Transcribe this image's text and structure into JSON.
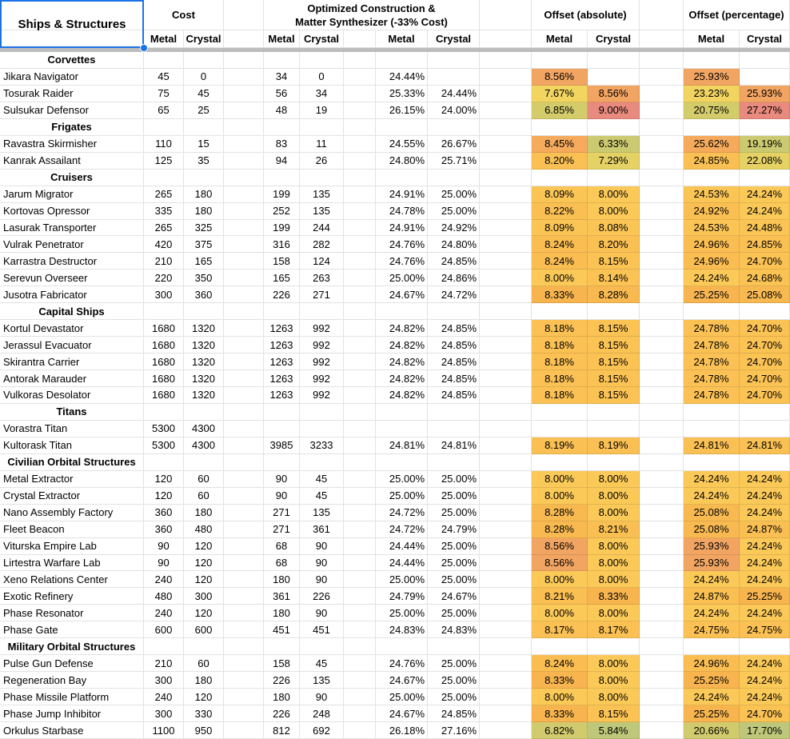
{
  "header": {
    "corner": "Ships & Structures",
    "groups": {
      "cost": "Cost",
      "optimized_line1": "Optimized Construction &",
      "optimized_line2": "Matter Synthesizer (-33% Cost)",
      "offset_absolute": "Offset (absolute)",
      "offset_percentage": "Offset (percentage)"
    },
    "sub": {
      "metal": "Metal",
      "crystal": "Crystal"
    }
  },
  "colors": {
    "selection_blue": "#1a73e8",
    "gridline": "#e2e2e2",
    "freeze_bar": "#bdbdbd",
    "palette": {
      "g": "#bec77a",
      "yg1": "#ccca70",
      "yg2": "#d1cb6e",
      "yg3": "#d4cc6b",
      "y1": "#e5d164",
      "y2": "#f2d561",
      "a0": "#fbc958",
      "a1": "#fbc556",
      "a2": "#fbc254",
      "a3": "#fbc154",
      "a4": "#fac053",
      "a5": "#fabf53",
      "a6": "#fabd52",
      "a7": "#f8b951",
      "a8": "#f7b44f",
      "o1": "#f5aa5c",
      "o2": "#f2a562",
      "r": "#e88a7d"
    }
  },
  "rows": [
    {
      "cat": "Corvettes"
    },
    {
      "n": "Jikara Navigator",
      "c": [
        "45",
        "0",
        "34",
        "0",
        "24.44%",
        ""
      ],
      "o": [
        [
          "8.56%",
          "o2"
        ],
        null,
        [
          "25.93%",
          "o2"
        ],
        null
      ]
    },
    {
      "n": "Tosurak Raider",
      "c": [
        "75",
        "45",
        "56",
        "34",
        "25.33%",
        "24.44%"
      ],
      "o": [
        [
          "7.67%",
          "y2"
        ],
        [
          "8.56%",
          "o2"
        ],
        [
          "23.23%",
          "y2"
        ],
        [
          "25.93%",
          "o2"
        ]
      ]
    },
    {
      "n": "Sulsukar Defensor",
      "c": [
        "65",
        "25",
        "48",
        "19",
        "26.15%",
        "24.00%"
      ],
      "o": [
        [
          "6.85%",
          "yg3"
        ],
        [
          "9.00%",
          "r"
        ],
        [
          "20.75%",
          "yg3"
        ],
        [
          "27.27%",
          "r"
        ]
      ]
    },
    {
      "cat": "Frigates"
    },
    {
      "n": "Ravastra Skirmisher",
      "c": [
        "110",
        "15",
        "83",
        "11",
        "24.55%",
        "26.67%"
      ],
      "o": [
        [
          "8.45%",
          "o1"
        ],
        [
          "6.33%",
          "yg1"
        ],
        [
          "25.62%",
          "o1"
        ],
        [
          "19.19%",
          "yg1"
        ]
      ]
    },
    {
      "n": "Kanrak Assailant",
      "c": [
        "125",
        "35",
        "94",
        "26",
        "24.80%",
        "25.71%"
      ],
      "o": [
        [
          "8.20%",
          "a4"
        ],
        [
          "7.29%",
          "y1"
        ],
        [
          "24.85%",
          "a4"
        ],
        [
          "22.08%",
          "y1"
        ]
      ]
    },
    {
      "cat": "Cruisers"
    },
    {
      "n": "Jarum Migrator",
      "c": [
        "265",
        "180",
        "199",
        "135",
        "24.91%",
        "25.00%"
      ],
      "o": [
        [
          "8.09%",
          "a1"
        ],
        [
          "8.00%",
          "a0"
        ],
        [
          "24.53%",
          "a1"
        ],
        [
          "24.24%",
          "a0"
        ]
      ]
    },
    {
      "n": "Kortovas Opressor",
      "c": [
        "335",
        "180",
        "252",
        "135",
        "24.78%",
        "25.00%"
      ],
      "o": [
        [
          "8.22%",
          "a5"
        ],
        [
          "8.00%",
          "a0"
        ],
        [
          "24.92%",
          "a5"
        ],
        [
          "24.24%",
          "a0"
        ]
      ]
    },
    {
      "n": "Lasurak Transporter",
      "c": [
        "265",
        "325",
        "199",
        "244",
        "24.91%",
        "24.92%"
      ],
      "o": [
        [
          "8.09%",
          "a1"
        ],
        [
          "8.08%",
          "a1"
        ],
        [
          "24.53%",
          "a1"
        ],
        [
          "24.48%",
          "a1"
        ]
      ]
    },
    {
      "n": "Vulrak Penetrator",
      "c": [
        "420",
        "375",
        "316",
        "282",
        "24.76%",
        "24.80%"
      ],
      "o": [
        [
          "8.24%",
          "a6"
        ],
        [
          "8.20%",
          "a4"
        ],
        [
          "24.96%",
          "a6"
        ],
        [
          "24.85%",
          "a4"
        ]
      ]
    },
    {
      "n": "Karrastra Destructor",
      "c": [
        "210",
        "165",
        "158",
        "124",
        "24.76%",
        "24.85%"
      ],
      "o": [
        [
          "8.24%",
          "a6"
        ],
        [
          "8.15%",
          "a2"
        ],
        [
          "24.96%",
          "a6"
        ],
        [
          "24.70%",
          "a2"
        ]
      ]
    },
    {
      "n": "Serevun Overseer",
      "c": [
        "220",
        "350",
        "165",
        "263",
        "25.00%",
        "24.86%"
      ],
      "o": [
        [
          "8.00%",
          "a0"
        ],
        [
          "8.14%",
          "a2"
        ],
        [
          "24.24%",
          "a0"
        ],
        [
          "24.68%",
          "a2"
        ]
      ]
    },
    {
      "n": "Jusotra Fabricator",
      "c": [
        "300",
        "360",
        "226",
        "271",
        "24.67%",
        "24.72%"
      ],
      "o": [
        [
          "8.33%",
          "a8"
        ],
        [
          "8.28%",
          "a7"
        ],
        [
          "25.25%",
          "a8"
        ],
        [
          "25.08%",
          "a7"
        ]
      ]
    },
    {
      "cat": "Capital Ships"
    },
    {
      "n": "Kortul Devastator",
      "c": [
        "1680",
        "1320",
        "1263",
        "992",
        "24.82%",
        "24.85%"
      ],
      "o": [
        [
          "8.18%",
          "a3"
        ],
        [
          "8.15%",
          "a2"
        ],
        [
          "24.78%",
          "a3"
        ],
        [
          "24.70%",
          "a2"
        ]
      ]
    },
    {
      "n": "Jerassul Evacuator",
      "c": [
        "1680",
        "1320",
        "1263",
        "992",
        "24.82%",
        "24.85%"
      ],
      "o": [
        [
          "8.18%",
          "a3"
        ],
        [
          "8.15%",
          "a2"
        ],
        [
          "24.78%",
          "a3"
        ],
        [
          "24.70%",
          "a2"
        ]
      ]
    },
    {
      "n": "Skirantra Carrier",
      "c": [
        "1680",
        "1320",
        "1263",
        "992",
        "24.82%",
        "24.85%"
      ],
      "o": [
        [
          "8.18%",
          "a3"
        ],
        [
          "8.15%",
          "a2"
        ],
        [
          "24.78%",
          "a3"
        ],
        [
          "24.70%",
          "a2"
        ]
      ]
    },
    {
      "n": "Antorak Marauder",
      "c": [
        "1680",
        "1320",
        "1263",
        "992",
        "24.82%",
        "24.85%"
      ],
      "o": [
        [
          "8.18%",
          "a3"
        ],
        [
          "8.15%",
          "a2"
        ],
        [
          "24.78%",
          "a3"
        ],
        [
          "24.70%",
          "a2"
        ]
      ]
    },
    {
      "n": "Vulkoras Desolator",
      "c": [
        "1680",
        "1320",
        "1263",
        "992",
        "24.82%",
        "24.85%"
      ],
      "o": [
        [
          "8.18%",
          "a3"
        ],
        [
          "8.15%",
          "a2"
        ],
        [
          "24.78%",
          "a3"
        ],
        [
          "24.70%",
          "a2"
        ]
      ]
    },
    {
      "cat": "Titans"
    },
    {
      "n": "Vorastra Titan",
      "c": [
        "5300",
        "4300",
        "",
        "",
        "",
        ""
      ],
      "o": [
        null,
        null,
        null,
        null
      ]
    },
    {
      "n": "Kultorask Titan",
      "c": [
        "5300",
        "4300",
        "3985",
        "3233",
        "24.81%",
        "24.81%"
      ],
      "o": [
        [
          "8.19%",
          "a4"
        ],
        [
          "8.19%",
          "a4"
        ],
        [
          "24.81%",
          "a4"
        ],
        [
          "24.81%",
          "a4"
        ]
      ]
    },
    {
      "cat": "Civilian Orbital Structures"
    },
    {
      "n": "Metal Extractor",
      "c": [
        "120",
        "60",
        "90",
        "45",
        "25.00%",
        "25.00%"
      ],
      "o": [
        [
          "8.00%",
          "a0"
        ],
        [
          "8.00%",
          "a0"
        ],
        [
          "24.24%",
          "a0"
        ],
        [
          "24.24%",
          "a0"
        ]
      ]
    },
    {
      "n": "Crystal Extractor",
      "c": [
        "120",
        "60",
        "90",
        "45",
        "25.00%",
        "25.00%"
      ],
      "o": [
        [
          "8.00%",
          "a0"
        ],
        [
          "8.00%",
          "a0"
        ],
        [
          "24.24%",
          "a0"
        ],
        [
          "24.24%",
          "a0"
        ]
      ]
    },
    {
      "n": "Nano Assembly Factory",
      "c": [
        "360",
        "180",
        "271",
        "135",
        "24.72%",
        "25.00%"
      ],
      "o": [
        [
          "8.28%",
          "a7"
        ],
        [
          "8.00%",
          "a0"
        ],
        [
          "25.08%",
          "a7"
        ],
        [
          "24.24%",
          "a0"
        ]
      ]
    },
    {
      "n": "Fleet Beacon",
      "c": [
        "360",
        "480",
        "271",
        "361",
        "24.72%",
        "24.79%"
      ],
      "o": [
        [
          "8.28%",
          "a7"
        ],
        [
          "8.21%",
          "a5"
        ],
        [
          "25.08%",
          "a7"
        ],
        [
          "24.87%",
          "a5"
        ]
      ]
    },
    {
      "n": "Viturska Empire Lab",
      "c": [
        "90",
        "120",
        "68",
        "90",
        "24.44%",
        "25.00%"
      ],
      "o": [
        [
          "8.56%",
          "o2"
        ],
        [
          "8.00%",
          "a0"
        ],
        [
          "25.93%",
          "o2"
        ],
        [
          "24.24%",
          "a0"
        ]
      ]
    },
    {
      "n": "Lirtestra Warfare Lab",
      "c": [
        "90",
        "120",
        "68",
        "90",
        "24.44%",
        "25.00%"
      ],
      "o": [
        [
          "8.56%",
          "o2"
        ],
        [
          "8.00%",
          "a0"
        ],
        [
          "25.93%",
          "o2"
        ],
        [
          "24.24%",
          "a0"
        ]
      ]
    },
    {
      "n": "Xeno Relations Center",
      "c": [
        "240",
        "120",
        "180",
        "90",
        "25.00%",
        "25.00%"
      ],
      "o": [
        [
          "8.00%",
          "a0"
        ],
        [
          "8.00%",
          "a0"
        ],
        [
          "24.24%",
          "a0"
        ],
        [
          "24.24%",
          "a0"
        ]
      ]
    },
    {
      "n": "Exotic Refinery",
      "c": [
        "480",
        "300",
        "361",
        "226",
        "24.79%",
        "24.67%"
      ],
      "o": [
        [
          "8.21%",
          "a5"
        ],
        [
          "8.33%",
          "a8"
        ],
        [
          "24.87%",
          "a5"
        ],
        [
          "25.25%",
          "a8"
        ]
      ]
    },
    {
      "n": "Phase Resonator",
      "c": [
        "240",
        "120",
        "180",
        "90",
        "25.00%",
        "25.00%"
      ],
      "o": [
        [
          "8.00%",
          "a0"
        ],
        [
          "8.00%",
          "a0"
        ],
        [
          "24.24%",
          "a0"
        ],
        [
          "24.24%",
          "a0"
        ]
      ]
    },
    {
      "n": "Phase Gate",
      "c": [
        "600",
        "600",
        "451",
        "451",
        "24.83%",
        "24.83%"
      ],
      "o": [
        [
          "8.17%",
          "a3"
        ],
        [
          "8.17%",
          "a3"
        ],
        [
          "24.75%",
          "a3"
        ],
        [
          "24.75%",
          "a3"
        ]
      ]
    },
    {
      "cat": "Military Orbital Structures"
    },
    {
      "n": "Pulse Gun Defense",
      "c": [
        "210",
        "60",
        "158",
        "45",
        "24.76%",
        "25.00%"
      ],
      "o": [
        [
          "8.24%",
          "a6"
        ],
        [
          "8.00%",
          "a0"
        ],
        [
          "24.96%",
          "a6"
        ],
        [
          "24.24%",
          "a0"
        ]
      ]
    },
    {
      "n": "Regeneration Bay",
      "c": [
        "300",
        "180",
        "226",
        "135",
        "24.67%",
        "25.00%"
      ],
      "o": [
        [
          "8.33%",
          "a8"
        ],
        [
          "8.00%",
          "a0"
        ],
        [
          "25.25%",
          "a8"
        ],
        [
          "24.24%",
          "a0"
        ]
      ]
    },
    {
      "n": "Phase Missile Platform",
      "c": [
        "240",
        "120",
        "180",
        "90",
        "25.00%",
        "25.00%"
      ],
      "o": [
        [
          "8.00%",
          "a0"
        ],
        [
          "8.00%",
          "a0"
        ],
        [
          "24.24%",
          "a0"
        ],
        [
          "24.24%",
          "a0"
        ]
      ]
    },
    {
      "n": "Phase Jump Inhibitor",
      "c": [
        "300",
        "330",
        "226",
        "248",
        "24.67%",
        "24.85%"
      ],
      "o": [
        [
          "8.33%",
          "a8"
        ],
        [
          "8.15%",
          "a2"
        ],
        [
          "25.25%",
          "a8"
        ],
        [
          "24.70%",
          "a2"
        ]
      ]
    },
    {
      "n": "Orkulus Starbase",
      "c": [
        "1100",
        "950",
        "812",
        "692",
        "26.18%",
        "27.16%"
      ],
      "o": [
        [
          "6.82%",
          "yg2"
        ],
        [
          "5.84%",
          "g"
        ],
        [
          "20.66%",
          "yg2"
        ],
        [
          "17.70%",
          "g"
        ]
      ]
    }
  ]
}
